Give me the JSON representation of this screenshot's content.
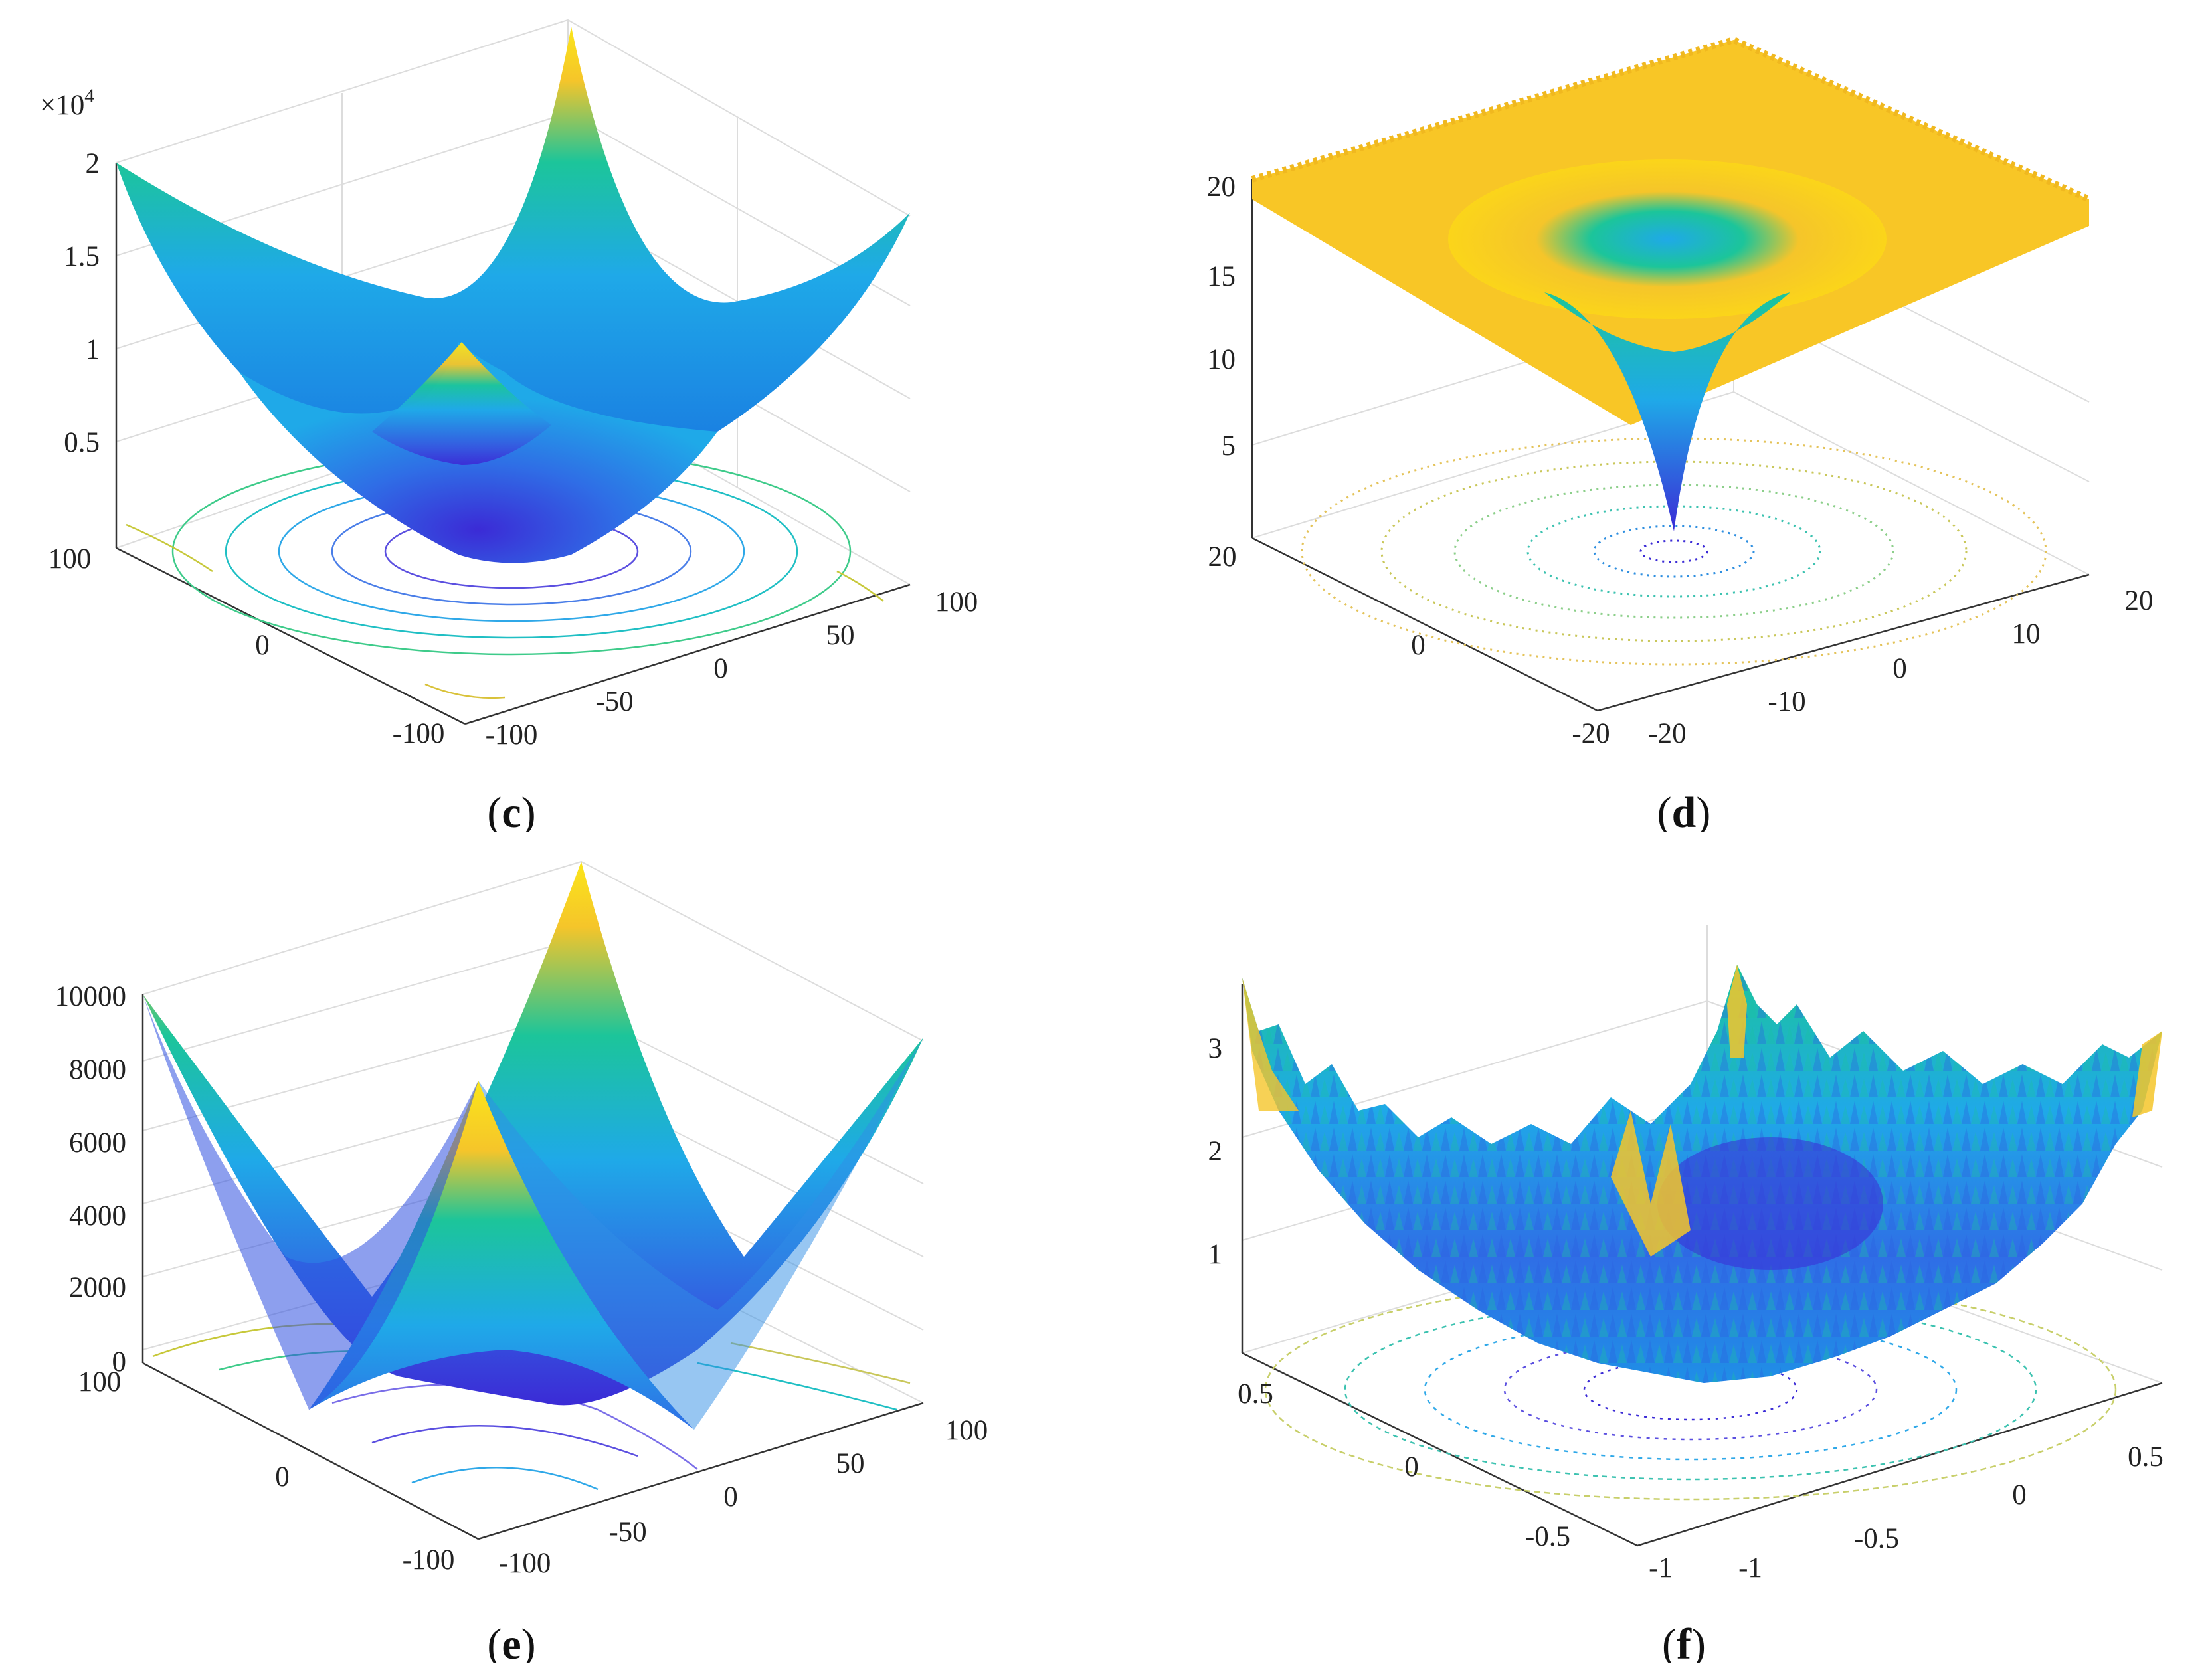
{
  "colors": {
    "low": "#3b2bd6",
    "mid": "#1fa9e8",
    "teal": "#1cc59a",
    "high": "#f5c52a",
    "peak": "#fbe61a",
    "grid": "#dcdcdc",
    "axis": "#333333"
  },
  "chart_data": [
    {
      "id": "c",
      "type": "surface",
      "caption_letter": "c",
      "caption_open": "(",
      "caption_close": ")",
      "function": "sphere-like bowl",
      "z_multiplier": "×10",
      "z_exponent": "4",
      "zlim": [
        0,
        2
      ],
      "xlim": [
        -100,
        100
      ],
      "ylim": [
        -100,
        100
      ],
      "z_ticks": [
        "2",
        "1.5",
        "1",
        "0.5"
      ],
      "x_ticks": [
        "100",
        "50",
        "0",
        "-50",
        "-100"
      ],
      "y_ticks": [
        "100",
        "0",
        "-100"
      ]
    },
    {
      "id": "d",
      "type": "surface",
      "caption_letter": "d",
      "caption_open": "(",
      "caption_close": ")",
      "function": "ackley-like funnel",
      "zlim": [
        0,
        22
      ],
      "xlim": [
        -20,
        20
      ],
      "ylim": [
        -20,
        20
      ],
      "z_ticks": [
        "20",
        "15",
        "10",
        "5"
      ],
      "x_ticks": [
        "20",
        "10",
        "0",
        "-10",
        "-20"
      ],
      "y_ticks": [
        "20",
        "0",
        "-20"
      ]
    },
    {
      "id": "e",
      "type": "surface",
      "caption_letter": "e",
      "caption_open": "(",
      "caption_close": ")",
      "function": "max-abs pyramid",
      "zlim": [
        0,
        10000
      ],
      "xlim": [
        -100,
        100
      ],
      "ylim": [
        -100,
        100
      ],
      "z_ticks": [
        "10000",
        "8000",
        "6000",
        "4000",
        "2000",
        "0"
      ],
      "x_ticks": [
        "100",
        "50",
        "0",
        "-50",
        "-100"
      ],
      "y_ticks": [
        "100",
        "0",
        "-100"
      ]
    },
    {
      "id": "f",
      "type": "surface",
      "caption_letter": "f",
      "caption_open": "(",
      "caption_close": ")",
      "function": "noisy quartic",
      "zlim": [
        0,
        3.5
      ],
      "xlim": [
        -1,
        1
      ],
      "ylim": [
        -1,
        1
      ],
      "z_ticks": [
        "3",
        "2",
        "1"
      ],
      "x_ticks": [
        "0.5",
        "0",
        "-0.5",
        "-1"
      ],
      "y_ticks": [
        "0.5",
        "0",
        "-0.5",
        "-1"
      ]
    }
  ]
}
